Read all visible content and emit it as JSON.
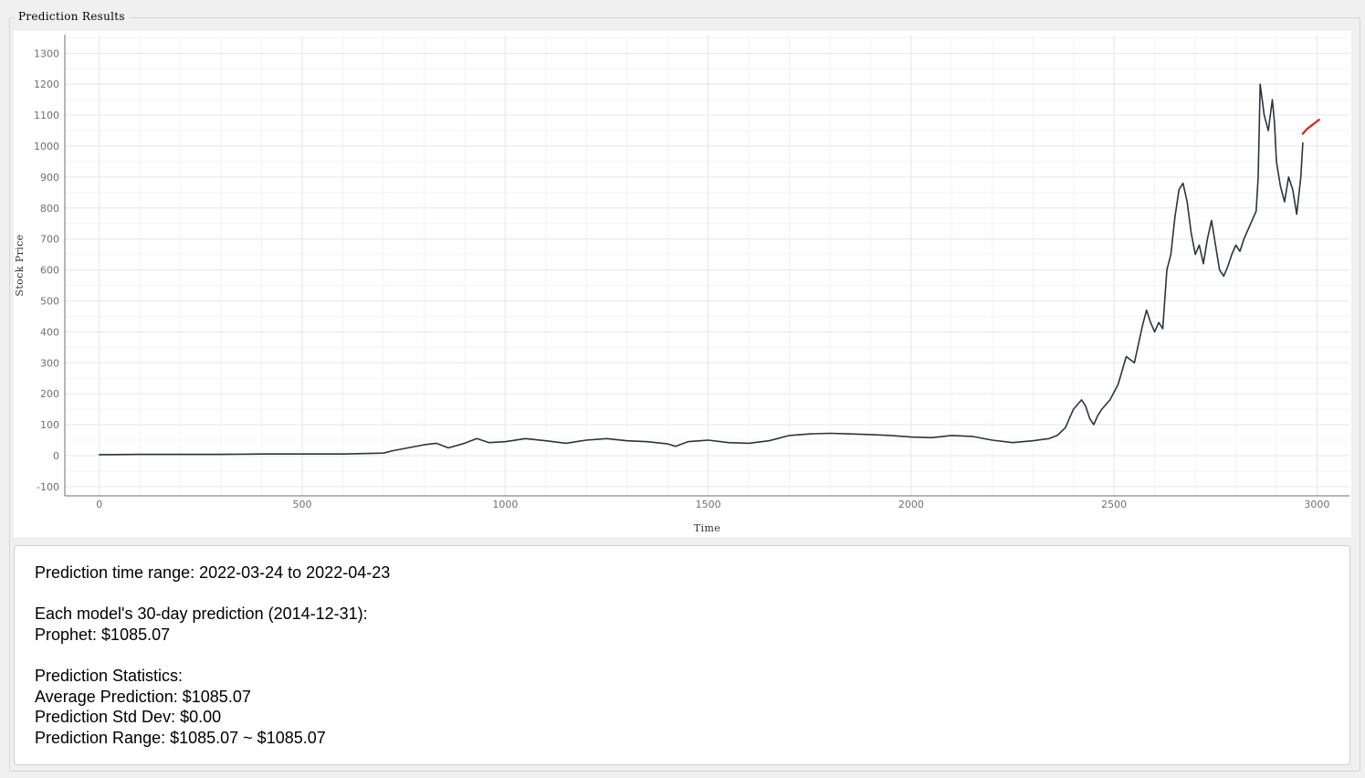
{
  "window": {
    "group_title": "Prediction Results"
  },
  "chart_data": {
    "type": "line",
    "xlabel": "Time",
    "ylabel": "Stock Price",
    "xlim": [
      -85,
      3080
    ],
    "ylim": [
      -130,
      1360
    ],
    "xticks": [
      0,
      500,
      1000,
      1500,
      2000,
      2500,
      3000
    ],
    "yticks": [
      -100,
      0,
      100,
      200,
      300,
      400,
      500,
      600,
      700,
      800,
      900,
      1000,
      1100,
      1200,
      1300
    ],
    "grid": true,
    "series": [
      {
        "color": "#2c3440",
        "x": [
          0,
          100,
          200,
          300,
          400,
          500,
          600,
          700,
          720,
          760,
          800,
          830,
          860,
          900,
          930,
          960,
          1000,
          1050,
          1100,
          1150,
          1200,
          1250,
          1300,
          1350,
          1400,
          1420,
          1450,
          1500,
          1550,
          1600,
          1650,
          1700,
          1750,
          1800,
          1850,
          1900,
          1950,
          2000,
          2050,
          2100,
          2150,
          2200,
          2250,
          2300,
          2340,
          2360,
          2380,
          2400,
          2420,
          2430,
          2440,
          2450,
          2460,
          2470,
          2490,
          2510,
          2530,
          2550,
          2570,
          2580,
          2590,
          2600,
          2610,
          2620,
          2630,
          2640,
          2650,
          2660,
          2670,
          2680,
          2690,
          2700,
          2710,
          2720,
          2730,
          2740,
          2750,
          2760,
          2770,
          2780,
          2790,
          2800,
          2810,
          2820,
          2830,
          2840,
          2850,
          2855,
          2860,
          2870,
          2880,
          2890,
          2895,
          2900,
          2910,
          2920,
          2930,
          2940,
          2950,
          2960,
          2965
        ],
        "y": [
          3,
          4,
          4,
          4,
          5,
          5,
          5,
          8,
          15,
          25,
          35,
          40,
          25,
          40,
          55,
          42,
          45,
          55,
          48,
          40,
          50,
          55,
          48,
          45,
          38,
          30,
          45,
          50,
          42,
          40,
          48,
          65,
          70,
          72,
          70,
          68,
          65,
          60,
          58,
          65,
          62,
          50,
          42,
          48,
          55,
          65,
          90,
          150,
          180,
          160,
          120,
          100,
          130,
          150,
          180,
          230,
          320,
          300,
          420,
          470,
          430,
          400,
          430,
          410,
          600,
          650,
          770,
          860,
          880,
          820,
          720,
          650,
          680,
          620,
          700,
          760,
          680,
          600,
          580,
          610,
          650,
          680,
          660,
          700,
          730,
          760,
          790,
          900,
          1200,
          1100,
          1050,
          1150,
          1080,
          950,
          870,
          820,
          900,
          860,
          780,
          900,
          1010
        ]
      },
      {
        "color": "#d0312d",
        "x": [
          2965,
          2975,
          2985,
          2995,
          3005
        ],
        "y": [
          1040,
          1055,
          1065,
          1075,
          1085
        ]
      }
    ]
  },
  "info": {
    "lines": [
      "Prediction time range: 2022-03-24 to 2022-04-23",
      "",
      "Each model's 30-day prediction (2014-12-31):",
      "Prophet: $1085.07",
      "",
      "Prediction Statistics:",
      "Average Prediction: $1085.07",
      "Prediction Std Dev: $0.00",
      "Prediction Range: $1085.07 ~ $1085.07"
    ]
  }
}
